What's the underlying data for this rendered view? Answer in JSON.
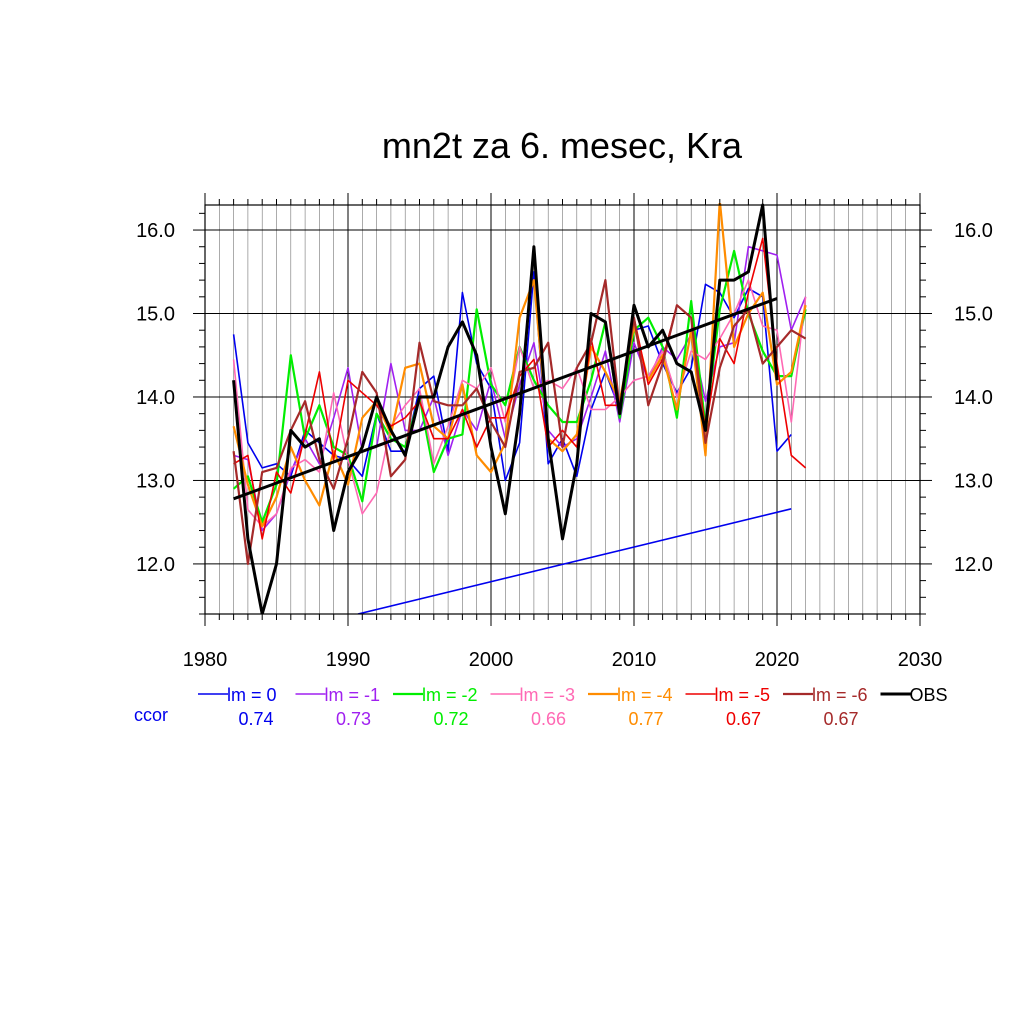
{
  "chart_data": {
    "type": "line",
    "title": "mn2t za 6. mesec, Kra",
    "xlabel": "",
    "ylabel": "",
    "xlim": [
      1980,
      2030
    ],
    "ylim": [
      11.4,
      16.3
    ],
    "x_ticks": [
      1980,
      1990,
      2000,
      2010,
      2020,
      2030
    ],
    "x_tick_labels": [
      "1980",
      "1990",
      "2000",
      "2010",
      "2020",
      "2030"
    ],
    "y_ticks": [
      12.0,
      13.0,
      14.0,
      15.0,
      16.0
    ],
    "y_tick_labels": [
      "12.0",
      "13.0",
      "14.0",
      "15.0",
      "16.0"
    ],
    "grid": true,
    "legend_position": "bottom",
    "ccor_label": "ccor",
    "series": [
      {
        "name": "lm = 0",
        "color": "#0000ee",
        "width": 1.6,
        "ccor": "0.74",
        "x_start": 1982,
        "values": [
          14.75,
          13.45,
          13.15,
          13.2,
          13.05,
          13.6,
          13.45,
          13.3,
          13.25,
          13.05,
          13.8,
          13.35,
          13.35,
          14.1,
          14.25,
          13.35,
          15.25,
          14.4,
          14.1,
          13.0,
          13.45,
          15.5,
          13.2,
          13.5,
          13.05,
          13.85,
          14.3,
          13.85,
          14.8,
          14.85,
          14.4,
          14.05,
          14.35,
          15.35,
          15.25,
          14.95,
          15.3,
          15.2,
          13.35,
          13.55
        ]
      },
      {
        "name": "lm = -1",
        "color": "#a020f0",
        "width": 1.6,
        "ccor": "0.73",
        "x_start": 1982,
        "values": [
          13.3,
          13.25,
          12.4,
          12.6,
          13.1,
          13.5,
          13.2,
          13.75,
          14.35,
          13.35,
          13.4,
          14.4,
          13.6,
          13.6,
          14.0,
          13.3,
          13.85,
          13.6,
          14.2,
          13.5,
          14.15,
          14.65,
          13.6,
          13.4,
          13.5,
          14.0,
          14.55,
          13.7,
          14.65,
          14.2,
          14.6,
          14.45,
          14.75,
          13.95,
          14.6,
          14.65,
          15.8,
          15.75,
          15.7,
          14.8,
          15.2
        ]
      },
      {
        "name": "lm = -2",
        "color": "#00ee00",
        "width": 2.2,
        "ccor": "0.72",
        "x_start": 1982,
        "values": [
          12.9,
          13.05,
          12.5,
          12.95,
          14.5,
          13.5,
          13.9,
          13.4,
          13.3,
          12.75,
          13.8,
          13.5,
          13.4,
          14.0,
          13.1,
          13.5,
          13.55,
          15.05,
          14.15,
          13.9,
          14.6,
          14.2,
          13.9,
          13.7,
          13.7,
          14.2,
          14.9,
          13.75,
          14.8,
          14.95,
          14.6,
          13.75,
          15.15,
          13.65,
          15.05,
          15.75,
          15.0,
          14.55,
          14.25,
          14.25,
          15.05
        ]
      },
      {
        "name": "lm = -3",
        "color": "#ff69b4",
        "width": 1.6,
        "ccor": "0.66",
        "x_start": 1982,
        "values": [
          14.45,
          12.65,
          12.45,
          12.6,
          13.15,
          13.25,
          13.1,
          14.05,
          13.25,
          12.6,
          12.85,
          13.65,
          13.9,
          14.1,
          13.2,
          13.65,
          14.2,
          14.1,
          14.35,
          13.7,
          14.6,
          14.1,
          14.2,
          14.1,
          14.35,
          13.85,
          13.85,
          14.0,
          14.2,
          14.25,
          14.55,
          14.0,
          14.55,
          14.45,
          14.7,
          15.0,
          15.4,
          14.85,
          14.8,
          13.7,
          15.2
        ]
      },
      {
        "name": "lm = -4",
        "color": "#ff8c00",
        "width": 2.2,
        "ccor": "0.77",
        "x_start": 1982,
        "values": [
          13.65,
          12.95,
          12.45,
          12.8,
          13.4,
          13.0,
          12.7,
          13.35,
          12.95,
          13.75,
          13.95,
          13.55,
          14.35,
          14.4,
          13.65,
          13.5,
          14.15,
          13.3,
          13.1,
          13.45,
          14.95,
          15.4,
          13.5,
          13.35,
          13.55,
          14.6,
          14.3,
          13.95,
          14.85,
          14.2,
          14.5,
          13.85,
          14.8,
          13.3,
          16.35,
          14.6,
          15.0,
          15.25,
          14.15,
          14.3,
          15.1
        ]
      },
      {
        "name": "lm = -5",
        "color": "#ee0000",
        "width": 1.6,
        "ccor": "0.67",
        "x_start": 1982,
        "values": [
          13.2,
          13.3,
          12.3,
          13.1,
          12.85,
          13.55,
          14.3,
          13.25,
          14.2,
          14.05,
          13.9,
          13.65,
          13.75,
          13.95,
          13.5,
          13.5,
          13.85,
          13.4,
          13.75,
          13.75,
          14.25,
          14.45,
          13.4,
          13.6,
          13.4,
          14.7,
          13.9,
          13.9,
          14.95,
          14.15,
          14.45,
          15.1,
          14.95,
          13.6,
          14.7,
          14.4,
          15.25,
          15.9,
          14.4,
          13.3,
          13.15
        ]
      },
      {
        "name": "lm = -6",
        "color": "#a52a2a",
        "width": 2.2,
        "ccor": "0.67",
        "x_start": 1982,
        "values": [
          13.35,
          12.0,
          13.1,
          13.15,
          13.6,
          13.95,
          13.25,
          12.9,
          13.5,
          14.3,
          14.05,
          13.05,
          13.25,
          14.65,
          13.95,
          13.9,
          13.9,
          14.1,
          13.7,
          13.4,
          14.3,
          14.35,
          14.65,
          13.4,
          14.35,
          14.65,
          15.4,
          13.85,
          14.95,
          13.9,
          14.4,
          15.1,
          14.95,
          13.45,
          14.35,
          14.85,
          15.05,
          14.4,
          14.6,
          14.8,
          14.7
        ]
      },
      {
        "name": "OBS",
        "color": "#000000",
        "width": 3.0,
        "ccor": "",
        "x_start": 1982,
        "values": [
          14.2,
          12.3,
          11.4,
          12.0,
          13.6,
          13.4,
          13.5,
          12.4,
          13.1,
          13.4,
          14.0,
          13.6,
          13.3,
          14.0,
          14.0,
          14.6,
          14.9,
          14.5,
          13.4,
          12.6,
          13.8,
          15.8,
          13.5,
          12.3,
          13.2,
          15.0,
          14.9,
          13.8,
          15.1,
          14.6,
          14.8,
          14.4,
          14.3,
          13.6,
          15.4,
          15.4,
          15.5,
          16.3,
          14.2
        ]
      }
    ],
    "trend_lines": [
      {
        "name": "OBS trend",
        "color": "#000000",
        "width": 3.0,
        "x": [
          1982,
          2020
        ],
        "y": [
          12.78,
          15.18
        ]
      },
      {
        "name": "lm = 0 trend",
        "color": "#0000ee",
        "width": 1.6,
        "x": [
          1990.7,
          2021
        ],
        "y": [
          11.4,
          12.66
        ]
      }
    ]
  }
}
